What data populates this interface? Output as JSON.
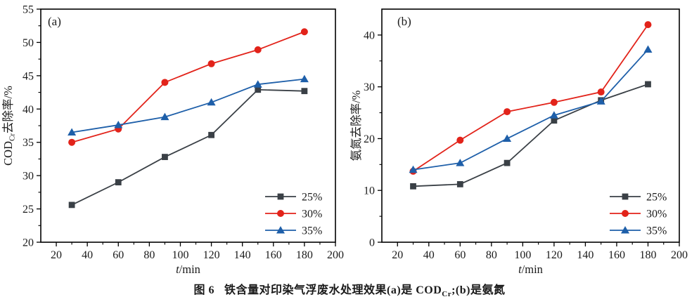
{
  "caption": {
    "fig_label": "图 6",
    "part1": "铁含量对印染气浮废水处理效果(a)是 COD",
    "sub": "Cr",
    "part2": ";(b)是氨氮"
  },
  "colors": {
    "black_series": "#3a4046",
    "red_series": "#e2231a",
    "blue_series": "#1e5fa9",
    "axis": "#000000"
  },
  "chart_data": [
    {
      "id": "a",
      "type": "line",
      "panel_label": "(a)",
      "xlabel": {
        "italic": "t",
        "rest": "/min"
      },
      "ylabel": {
        "prefix": "COD",
        "sub": "Cr",
        "suffix": "去除率/%"
      },
      "x": [
        30,
        60,
        90,
        120,
        150,
        180
      ],
      "series": [
        {
          "name": "25%",
          "marker": "square",
          "color": "black_series",
          "values": [
            25.6,
            29.0,
            32.8,
            36.1,
            42.9,
            42.7
          ]
        },
        {
          "name": "30%",
          "marker": "circle",
          "color": "red_series",
          "values": [
            35.0,
            37.0,
            44.0,
            46.8,
            48.9,
            51.6
          ]
        },
        {
          "name": "35%",
          "marker": "triangle",
          "color": "blue_series",
          "values": [
            36.5,
            37.6,
            38.8,
            41.0,
            43.7,
            44.5
          ]
        }
      ],
      "xlim": [
        10,
        200
      ],
      "ylim": [
        20,
        55
      ],
      "x_tick_labels": [
        20,
        40,
        60,
        80,
        100,
        120,
        140,
        160,
        180,
        200
      ],
      "y_tick_labels": [
        20,
        25,
        30,
        35,
        40,
        45,
        50,
        55
      ],
      "x_minor_step": 10,
      "y_minor_step": 2.5,
      "legend_position": "lower right",
      "grid": false
    },
    {
      "id": "b",
      "type": "line",
      "panel_label": "(b)",
      "xlabel": {
        "italic": "t",
        "rest": "/min"
      },
      "ylabel": {
        "prefix": "",
        "sub": "",
        "suffix": "氨氮去除率/%"
      },
      "x": [
        30,
        60,
        90,
        120,
        150,
        180
      ],
      "series": [
        {
          "name": "25%",
          "marker": "square",
          "color": "black_series",
          "values": [
            10.8,
            11.2,
            15.3,
            23.5,
            27.4,
            30.5
          ]
        },
        {
          "name": "30%",
          "marker": "circle",
          "color": "red_series",
          "values": [
            13.7,
            19.7,
            25.2,
            27.0,
            29.0,
            42.0
          ]
        },
        {
          "name": "35%",
          "marker": "triangle",
          "color": "blue_series",
          "values": [
            14.0,
            15.3,
            20.0,
            24.5,
            27.2,
            37.2
          ]
        }
      ],
      "xlim": [
        10,
        200
      ],
      "ylim": [
        0,
        45
      ],
      "x_tick_labels": [
        20,
        40,
        60,
        80,
        100,
        120,
        140,
        160,
        180,
        200
      ],
      "y_tick_labels": [
        0,
        10,
        20,
        30,
        40
      ],
      "x_minor_step": 10,
      "y_minor_step": 5,
      "legend_position": "lower right",
      "grid": false
    }
  ]
}
